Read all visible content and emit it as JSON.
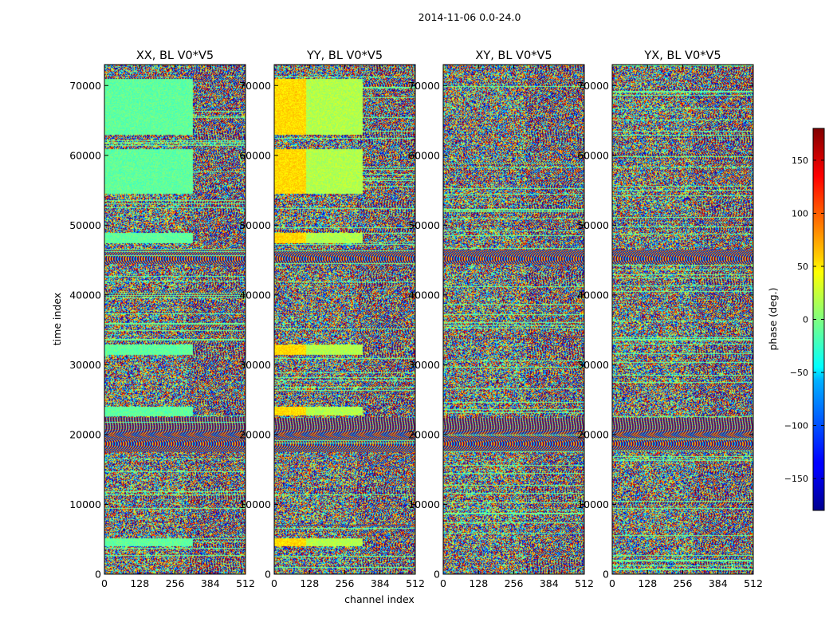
{
  "figure": {
    "suptitle": "2014-11-06 0.0-24.0"
  },
  "chart_data": {
    "type": "heatmap",
    "panels": [
      {
        "title": "XX, BL V0*V5",
        "pol": "XX"
      },
      {
        "title": "YY, BL V0*V5",
        "pol": "YY"
      },
      {
        "title": "XY, BL V0*V5",
        "pol": "XY"
      },
      {
        "title": "YX, BL V0*V5",
        "pol": "YX"
      }
    ],
    "xlabel": "channel index",
    "ylabel": "time index",
    "xlim": [
      0,
      512
    ],
    "ylim": [
      0,
      73000
    ],
    "xticks": [
      0,
      128,
      256,
      384,
      512
    ],
    "yticks": [
      0,
      10000,
      20000,
      30000,
      40000,
      50000,
      60000,
      70000
    ],
    "xtick_labels": [
      "0",
      "128",
      "256",
      "384",
      "512"
    ],
    "ytick_labels": [
      "0",
      "10000",
      "20000",
      "30000",
      "40000",
      "50000",
      "60000",
      "70000"
    ],
    "colorbar": {
      "label": "phase (deg.)",
      "range": [
        -180,
        180
      ],
      "ticks": [
        -150,
        -100,
        -50,
        0,
        50,
        100,
        150
      ],
      "tick_labels": [
        "−150",
        "−100",
        "−50",
        "0",
        "50",
        "100",
        "150"
      ],
      "colormap": "jet"
    }
  }
}
